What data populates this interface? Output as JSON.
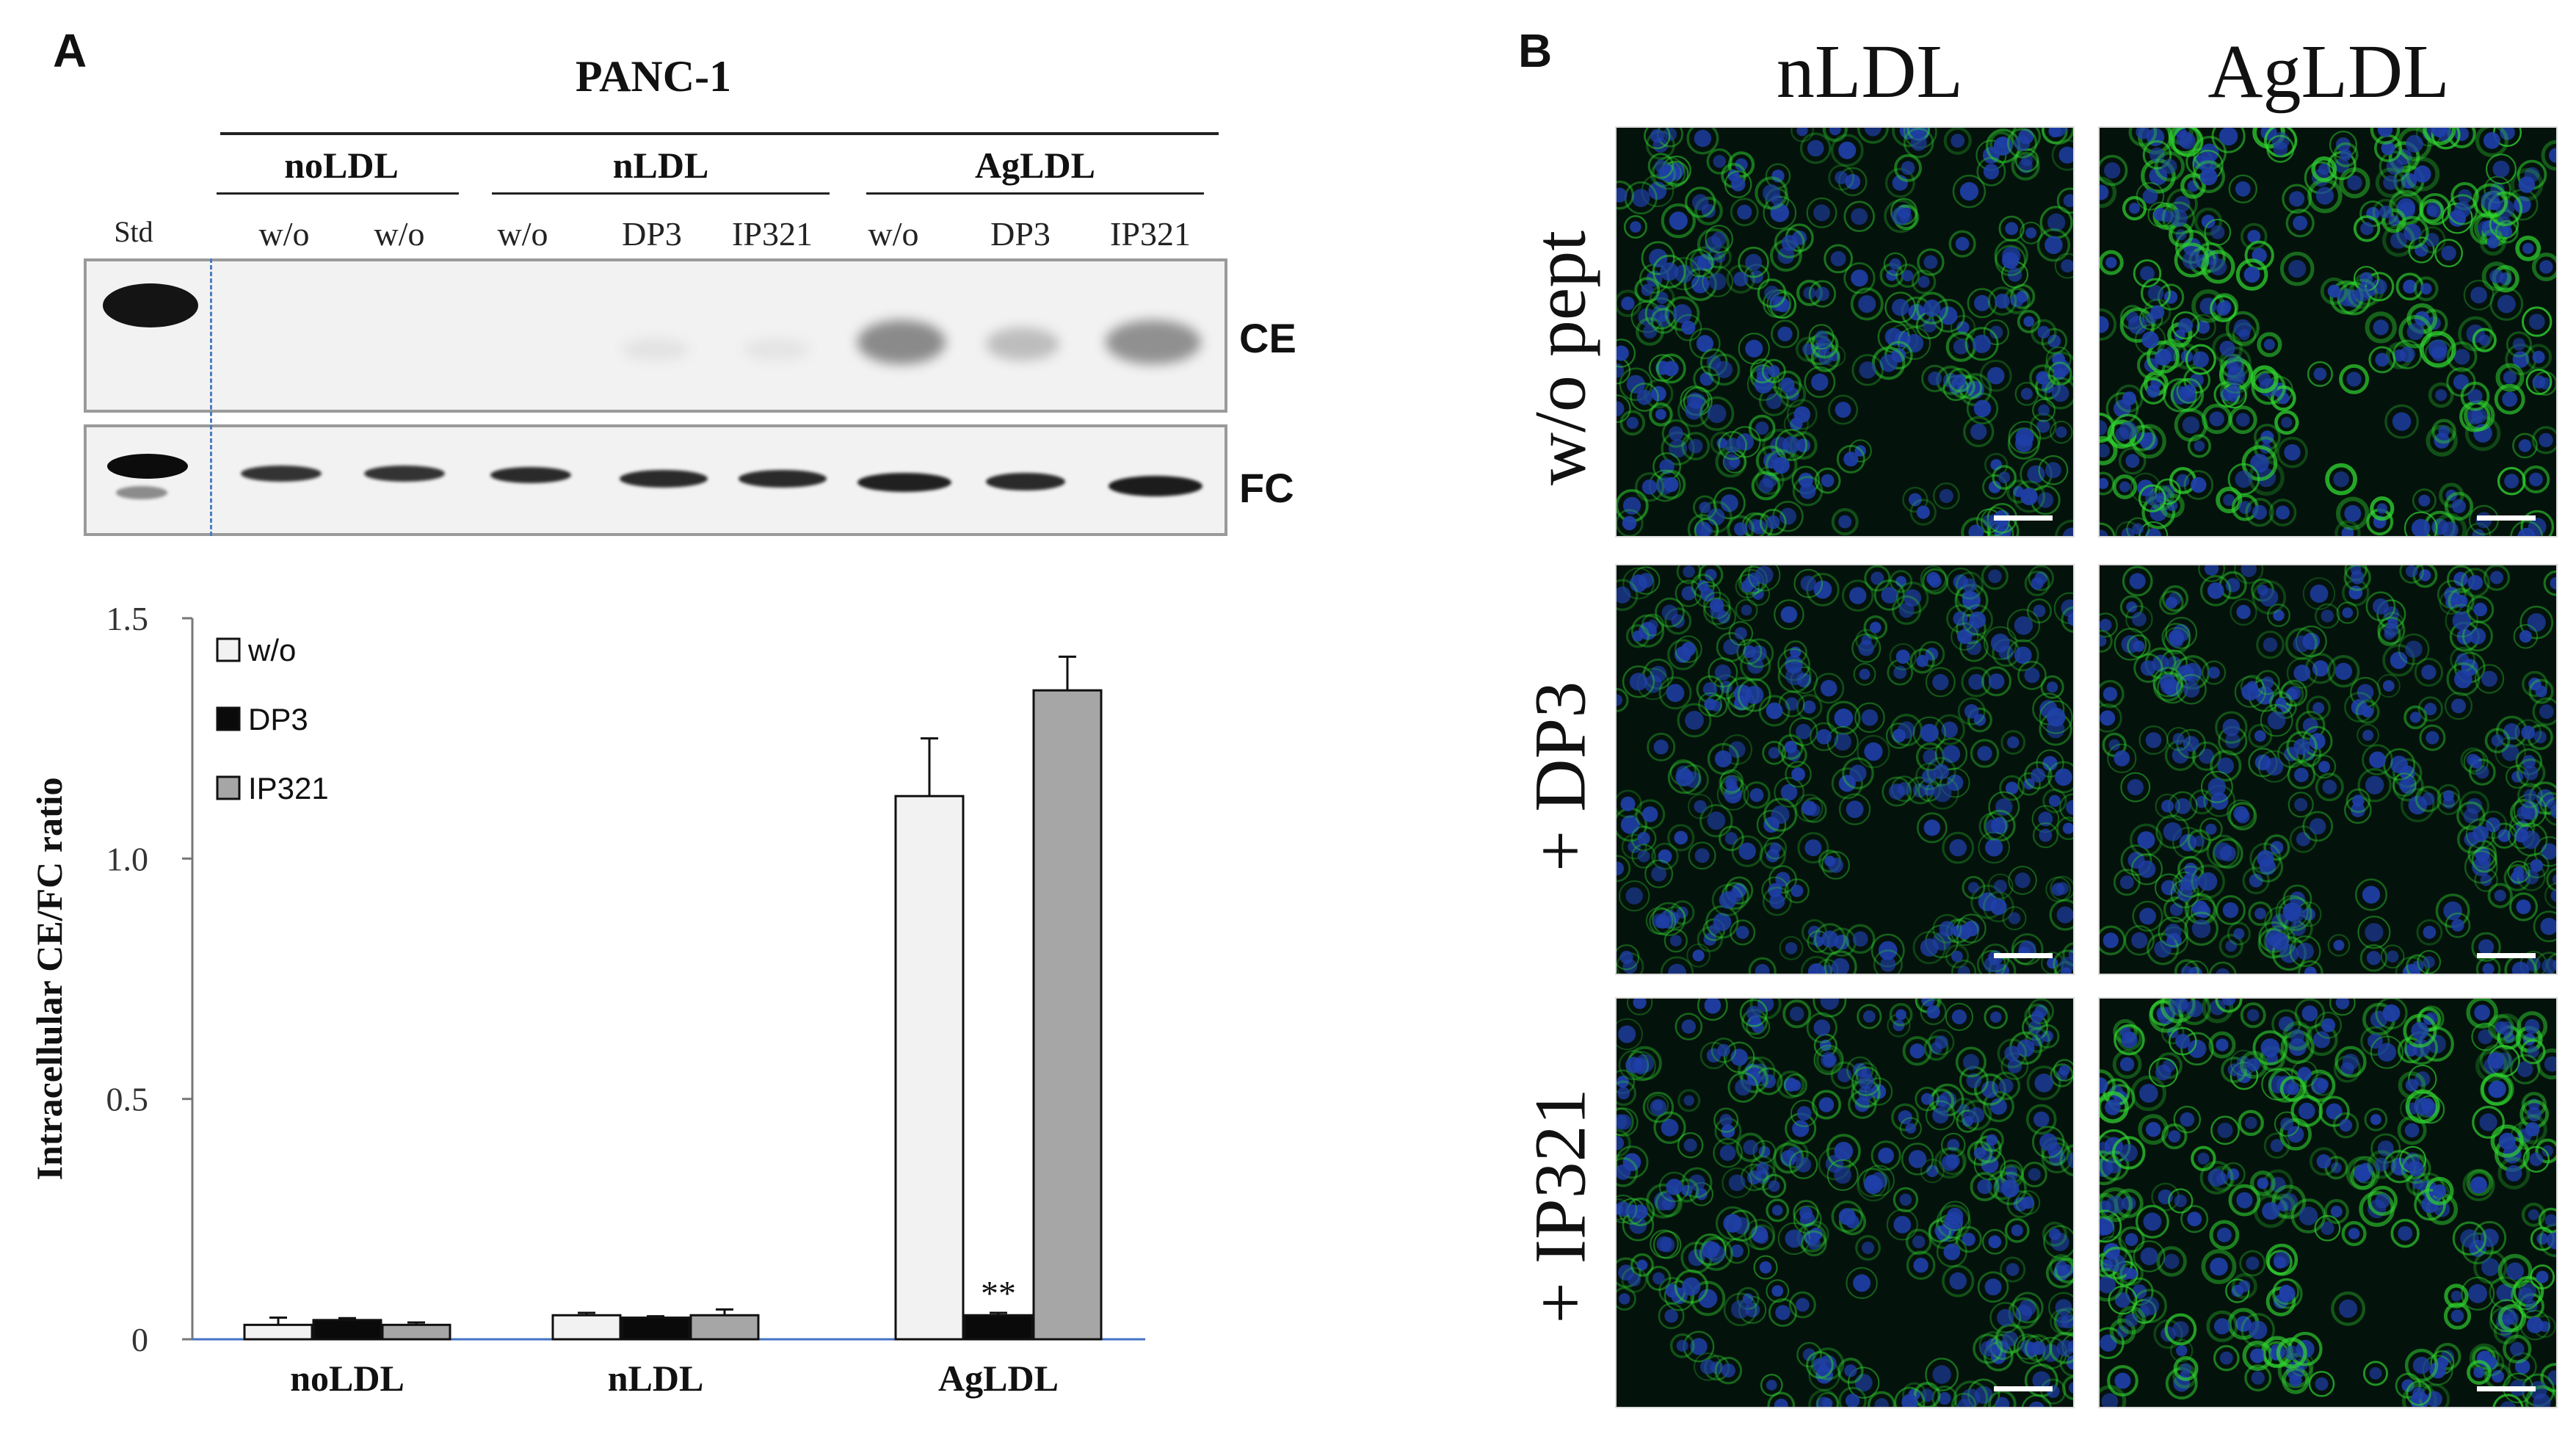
{
  "panel_a": {
    "letter": "A",
    "cell_line": "PANC-1",
    "groups": [
      "noLDL",
      "nLDL",
      "AgLDL"
    ],
    "std_label": "Std",
    "lanes": [
      "w/o",
      "w/o",
      "w/o",
      "DP3",
      "IP321",
      "w/o",
      "DP3",
      "IP321"
    ],
    "blot_labels": {
      "ce": "CE",
      "fc": "FC"
    },
    "colors": {
      "wo": "#f2f2f2",
      "dp3": "#0a0a0a",
      "ip321": "#a6a6a6",
      "axis": "#4472c4"
    }
  },
  "panel_b": {
    "letter": "B",
    "columns": [
      "nLDL",
      "AgLDL"
    ],
    "rows": [
      "w/o pept",
      "+ DP3",
      "+ IP321"
    ],
    "colors": {
      "nucleus": "#1f3fa8",
      "membrane": "#2fd22f",
      "background": "#04120c"
    }
  },
  "chart_data": {
    "type": "bar",
    "categories": [
      "noLDL",
      "nLDL",
      "AgLDL"
    ],
    "series": [
      {
        "name": "w/o",
        "values": [
          0.03,
          0.05,
          1.13
        ],
        "errors": [
          0.015,
          0.005,
          0.12
        ]
      },
      {
        "name": "DP3",
        "values": [
          0.04,
          0.045,
          0.05
        ],
        "errors": [
          0.004,
          0.003,
          0.005
        ]
      },
      {
        "name": "IP321",
        "values": [
          0.03,
          0.05,
          1.35
        ],
        "errors": [
          0.005,
          0.012,
          0.07
        ]
      }
    ],
    "annotations": [
      {
        "category": "AgLDL",
        "series": "DP3",
        "text": "**"
      }
    ],
    "ylabel": "Intracellular CE/FC ratio",
    "yticks": [
      "0",
      "0.5",
      "1.0",
      "1.5"
    ],
    "ylim": [
      0,
      1.5
    ],
    "legend": "top-left",
    "grid": false
  }
}
